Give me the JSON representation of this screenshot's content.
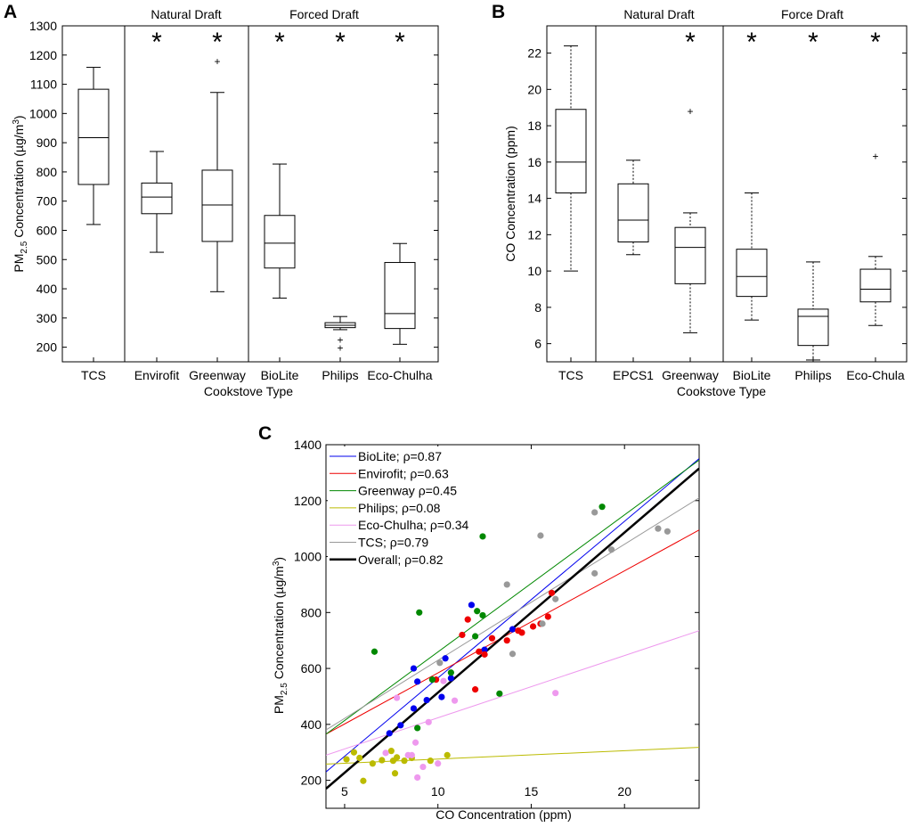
{
  "chart_data": [
    {
      "panel": "A",
      "type": "box",
      "ylabel": "PM2.5 Concentration (µg/m³)",
      "ylabel_parts": {
        "main": "PM",
        "sub": "2.5",
        "after": " Concentration (µg/m",
        "sup": "3",
        "end": ")"
      },
      "xlabel": "Cookstove Type",
      "ylim": [
        150,
        1300
      ],
      "yticks": [
        200,
        300,
        400,
        500,
        600,
        700,
        800,
        900,
        1000,
        1100,
        1200,
        1300
      ],
      "groups": [
        "Natural Draft",
        "Forced Draft"
      ],
      "significance_marker": "*",
      "boxes": [
        {
          "label": "TCS",
          "whisker_low": 620,
          "q1": 757,
          "median": 917,
          "q3": 1083,
          "whisker_high": 1158,
          "outliers": [],
          "whisker_style": "solid",
          "star": false
        },
        {
          "label": "Envirofit",
          "whisker_low": 525,
          "q1": 657,
          "median": 714,
          "q3": 762,
          "whisker_high": 870,
          "outliers": [],
          "whisker_style": "solid",
          "star": true
        },
        {
          "label": "Greenway",
          "whisker_low": 390,
          "q1": 562,
          "median": 687,
          "q3": 806,
          "whisker_high": 1072,
          "outliers": [
            1178
          ],
          "whisker_style": "solid",
          "star": true
        },
        {
          "label": "BioLite",
          "whisker_low": 368,
          "q1": 471,
          "median": 556,
          "q3": 651,
          "whisker_high": 827,
          "outliers": [],
          "whisker_style": "solid",
          "star": true
        },
        {
          "label": "Philips",
          "whisker_low": 260,
          "q1": 267,
          "median": 275,
          "q3": 284,
          "whisker_high": 305,
          "outliers": [
            225,
            198
          ],
          "whisker_style": "solid",
          "star": true
        },
        {
          "label": "Eco-Chulha",
          "whisker_low": 210,
          "q1": 264,
          "median": 315,
          "q3": 490,
          "whisker_high": 555,
          "outliers": [],
          "whisker_style": "solid",
          "star": true
        }
      ]
    },
    {
      "panel": "B",
      "type": "box",
      "ylabel": "CO Concentration (ppm)",
      "xlabel": "Cookstove Type",
      "ylim": [
        5,
        23.5
      ],
      "yticks": [
        6,
        8,
        10,
        12,
        14,
        16,
        18,
        20,
        22
      ],
      "groups": [
        "Natural Draft",
        "Force Draft"
      ],
      "significance_marker": "*",
      "boxes": [
        {
          "label": "TCS",
          "whisker_low": 10.0,
          "q1": 14.3,
          "median": 16.0,
          "q3": 18.9,
          "whisker_high": 22.4,
          "outliers": [],
          "whisker_style": "dashed",
          "star": false
        },
        {
          "label": "EPCS1",
          "whisker_low": 10.9,
          "q1": 11.6,
          "median": 12.8,
          "q3": 14.8,
          "whisker_high": 16.1,
          "outliers": [],
          "whisker_style": "dashed",
          "star": false
        },
        {
          "label": "Greenway",
          "whisker_low": 6.6,
          "q1": 9.3,
          "median": 11.3,
          "q3": 12.4,
          "whisker_high": 13.2,
          "outliers": [
            18.8
          ],
          "whisker_style": "dashed",
          "star": true
        },
        {
          "label": "BioLite",
          "whisker_low": 7.3,
          "q1": 8.6,
          "median": 9.7,
          "q3": 11.2,
          "whisker_high": 14.3,
          "outliers": [],
          "whisker_style": "dashed",
          "star": true
        },
        {
          "label": "Philips",
          "whisker_low": 5.1,
          "q1": 5.9,
          "median": 7.5,
          "q3": 7.9,
          "whisker_high": 10.5,
          "outliers": [],
          "whisker_style": "dashed",
          "star": true
        },
        {
          "label": "Eco-Chula",
          "whisker_low": 7.0,
          "q1": 8.3,
          "median": 9.0,
          "q3": 10.1,
          "whisker_high": 10.8,
          "outliers": [
            16.3
          ],
          "whisker_style": "dashed",
          "star": true
        }
      ]
    },
    {
      "panel": "C",
      "type": "scatter",
      "xlabel": "CO Concentration (ppm)",
      "ylabel": "PM2.5 Concentration (µg/m³)",
      "ylabel_parts": {
        "main": "PM",
        "sub": "2.5",
        "after": " Concentration (µg/m",
        "sup": "3",
        "end": ")"
      },
      "xlim": [
        4,
        24
      ],
      "ylim": [
        100,
        1400
      ],
      "xticks": [
        5,
        10,
        15,
        20
      ],
      "yticks": [
        200,
        400,
        600,
        800,
        1000,
        1200,
        1400
      ],
      "series": [
        {
          "name": "BioLite",
          "legend": "BioLite; ρ=0.87",
          "color": "#0000ee",
          "line_width": 1,
          "fit": [
            [
              4,
              230
            ],
            [
              24,
              1350
            ]
          ],
          "points": [
            [
              8.7,
              600
            ],
            [
              10.4,
              636
            ],
            [
              12.5,
              667
            ],
            [
              11.8,
              827
            ],
            [
              8.9,
              553
            ],
            [
              10.2,
              498
            ],
            [
              9.4,
              487
            ],
            [
              8.7,
              457
            ],
            [
              8.0,
              397
            ],
            [
              7.4,
              368
            ],
            [
              10.7,
              565
            ],
            [
              14.0,
              740
            ]
          ]
        },
        {
          "name": "Envirofit",
          "legend": "Envirofit; ρ=0.63",
          "color": "#ee0000",
          "line_width": 1,
          "fit": [
            [
              4,
              365
            ],
            [
              24,
              1095
            ]
          ],
          "points": [
            [
              12.2,
              660
            ],
            [
              12.5,
              650
            ],
            [
              12.9,
              708
            ],
            [
              11.3,
              720
            ],
            [
              11.6,
              775
            ],
            [
              12.0,
              525
            ],
            [
              13.7,
              700
            ],
            [
              14.3,
              735
            ],
            [
              14.5,
              728
            ],
            [
              15.1,
              750
            ],
            [
              15.5,
              760
            ],
            [
              15.9,
              785
            ],
            [
              16.1,
              870
            ],
            [
              9.9,
              560
            ]
          ]
        },
        {
          "name": "Greenway",
          "legend": "Greenway  ρ=0.45",
          "color": "#008800",
          "line_width": 1,
          "fit": [
            [
              4,
              365
            ],
            [
              24,
              1345
            ]
          ],
          "points": [
            [
              6.6,
              660
            ],
            [
              9.0,
              800
            ],
            [
              12.1,
              805
            ],
            [
              12.4,
              790
            ],
            [
              12.4,
              1072
            ],
            [
              18.8,
              1178
            ],
            [
              9.7,
              560
            ],
            [
              12.0,
              715
            ],
            [
              13.3,
              510
            ],
            [
              8.9,
              387
            ],
            [
              10.7,
              585
            ]
          ]
        },
        {
          "name": "Philips",
          "legend": "Philips; ρ=0.08",
          "color": "#bbbb00",
          "line_width": 1,
          "fit": [
            [
              4,
              258
            ],
            [
              24,
              318
            ]
          ],
          "points": [
            [
              5.1,
              275
            ],
            [
              5.5,
              300
            ],
            [
              5.8,
              280
            ],
            [
              6.0,
              198
            ],
            [
              6.5,
              260
            ],
            [
              7.0,
              272
            ],
            [
              7.5,
              305
            ],
            [
              7.6,
              270
            ],
            [
              7.8,
              282
            ],
            [
              7.7,
              225
            ],
            [
              8.2,
              270
            ],
            [
              8.6,
              280
            ],
            [
              9.6,
              270
            ],
            [
              10.5,
              290
            ]
          ]
        },
        {
          "name": "Eco-Chulha",
          "legend": "Eco-Chulha; ρ=0.34",
          "color": "#ee99ee",
          "line_width": 1,
          "fit": [
            [
              4,
              290
            ],
            [
              24,
              735
            ]
          ],
          "points": [
            [
              7.8,
              495
            ],
            [
              7.2,
              298
            ],
            [
              8.4,
              290
            ],
            [
              8.6,
              290
            ],
            [
              8.8,
              335
            ],
            [
              8.9,
              210
            ],
            [
              9.2,
              248
            ],
            [
              9.5,
              408
            ],
            [
              10.0,
              260
            ],
            [
              10.9,
              485
            ],
            [
              16.3,
              512
            ],
            [
              10.3,
              555
            ]
          ]
        },
        {
          "name": "TCS",
          "legend": "TCS; ρ=0.79",
          "color": "#999999",
          "line_width": 1,
          "fit": [
            [
              4,
              380
            ],
            [
              24,
              1210
            ]
          ],
          "points": [
            [
              13.7,
              900
            ],
            [
              14.0,
              652
            ],
            [
              15.5,
              1075
            ],
            [
              15.6,
              760
            ],
            [
              16.3,
              848
            ],
            [
              18.4,
              1158
            ],
            [
              18.4,
              940
            ],
            [
              19.3,
              1025
            ],
            [
              21.8,
              1100
            ],
            [
              22.3,
              1090
            ],
            [
              10.1,
              620
            ]
          ]
        },
        {
          "name": "Overall",
          "legend": "Overall; ρ=0.82",
          "color": "#000000",
          "line_width": 2.5,
          "fit": [
            [
              4,
              170
            ],
            [
              24,
              1315
            ]
          ],
          "points": []
        }
      ]
    }
  ],
  "panel_labels": {
    "a": "A",
    "b": "B",
    "c": "C"
  }
}
